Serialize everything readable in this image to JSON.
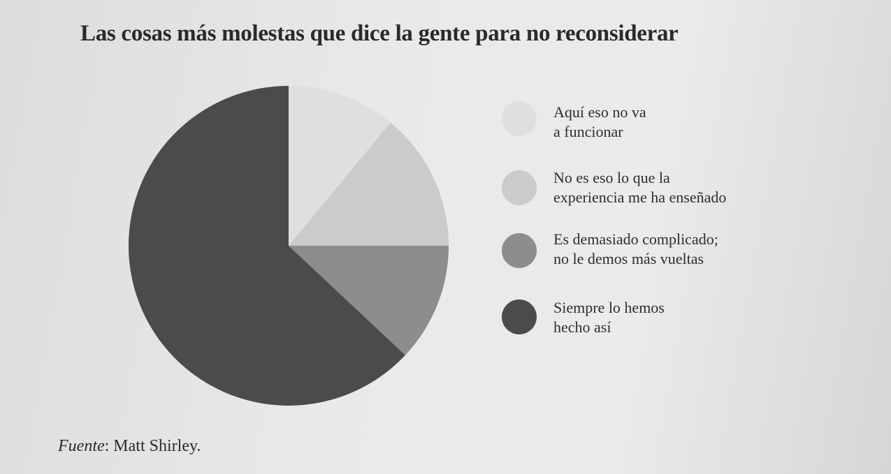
{
  "chart_data": {
    "type": "pie",
    "title": "Las cosas más molestas que dice la gente para no reconsiderar",
    "start_angle_deg": 0,
    "direction": "clockwise",
    "legend_position": "right",
    "slices": [
      {
        "label": "Aquí eso no va\na funcionar",
        "value": 11,
        "color": "#e0dfdd"
      },
      {
        "label": "No es eso lo que la\nexperiencia me ha enseñado",
        "value": 14,
        "color": "#cbcbca"
      },
      {
        "label": "Es demasiado complicado;\nno le demos más vueltas",
        "value": 12,
        "color": "#8d8d8d"
      },
      {
        "label": "Siempre lo hemos\nhecho así",
        "value": 63,
        "color": "#4b4b4d"
      }
    ]
  },
  "source": {
    "prefix": "Fuente",
    "text": ": Matt Shirley."
  }
}
